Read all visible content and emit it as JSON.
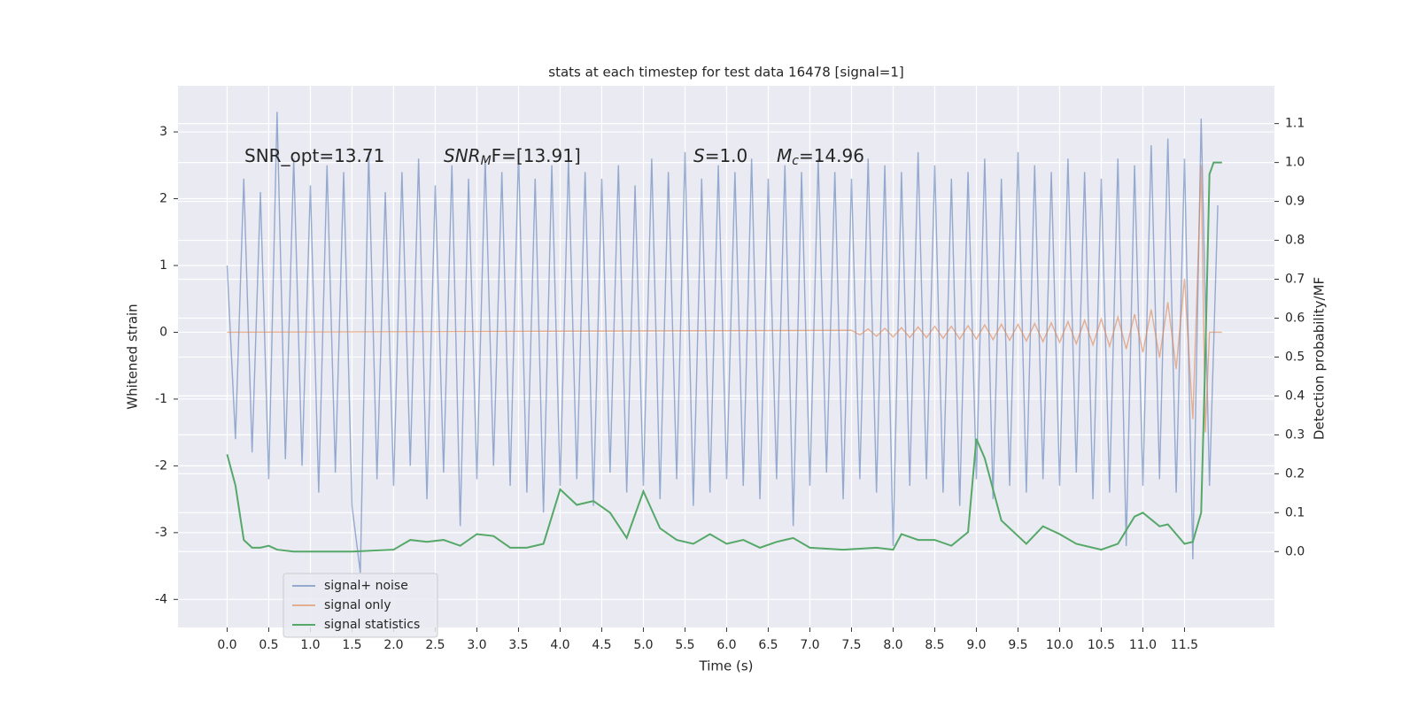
{
  "chart_data": {
    "type": "line",
    "title": "stats at each timestep for test data 16478 [signal=1]",
    "xlabel": "Time (s)",
    "ylabel": "Whitened strain",
    "y2label": "Detection probability/MF",
    "annotations": [
      {
        "base": "SNR_opt=13.71"
      },
      {
        "base": "SNR",
        "sub": "M",
        "rest": "F=[13.91]"
      },
      {
        "base": "S",
        "rest": "=1.0"
      },
      {
        "base": "M",
        "sub": "c",
        "rest": "=14.96"
      }
    ],
    "xlim": [
      -0.59,
      12.58
    ],
    "ylim": [
      -4.42,
      3.69
    ],
    "y2lim": [
      -0.195,
      1.197
    ],
    "xticks": [
      {
        "value": 0,
        "label": "0.0"
      },
      {
        "value": 0.5,
        "label": "0.5"
      },
      {
        "value": 1,
        "label": "1.0"
      },
      {
        "value": 1.5,
        "label": "1.5"
      },
      {
        "value": 2,
        "label": "2.0"
      },
      {
        "value": 2.5,
        "label": "2.5"
      },
      {
        "value": 3,
        "label": "3.0"
      },
      {
        "value": 3.5,
        "label": "3.5"
      },
      {
        "value": 4,
        "label": "4.0"
      },
      {
        "value": 4.5,
        "label": "4.5"
      },
      {
        "value": 5,
        "label": "5.0"
      },
      {
        "value": 5.5,
        "label": "5.5"
      },
      {
        "value": 6,
        "label": "6.0"
      },
      {
        "value": 6.5,
        "label": "6.5"
      },
      {
        "value": 7,
        "label": "7.0"
      },
      {
        "value": 7.5,
        "label": "7.5"
      },
      {
        "value": 8,
        "label": "8.0"
      },
      {
        "value": 8.5,
        "label": "8.5"
      },
      {
        "value": 9,
        "label": "9.0"
      },
      {
        "value": 9.5,
        "label": "9.5"
      },
      {
        "value": 10,
        "label": "10.0"
      },
      {
        "value": 10.5,
        "label": "10.5"
      },
      {
        "value": 11,
        "label": "11.0"
      },
      {
        "value": 11.5,
        "label": "11.5"
      }
    ],
    "yticks": [
      3,
      2,
      1,
      0,
      -1,
      -2,
      -3,
      -4
    ],
    "y2ticks": [
      {
        "value": 0,
        "label": "0.0"
      },
      0.1,
      0.2,
      0.3,
      0.4,
      0.5,
      0.6,
      0.7,
      0.8,
      0.9,
      {
        "value": 1,
        "label": "1.0"
      },
      1.1
    ],
    "grid": true,
    "legend": "lower left",
    "series": [
      {
        "name": "signal+ noise",
        "color": "#4c72b0",
        "x": [
          0,
          0.1,
          0.2,
          0.3,
          0.4,
          0.5,
          0.6,
          0.7,
          0.8,
          0.9,
          1,
          1.1,
          1.2,
          1.3,
          1.4,
          1.5,
          1.6,
          1.7,
          1.8,
          1.9,
          2,
          2.1,
          2.2,
          2.3,
          2.4,
          2.5,
          2.6,
          2.7,
          2.8,
          2.9,
          3,
          3.1,
          3.2,
          3.3,
          3.4,
          3.5,
          3.6,
          3.7,
          3.8,
          3.9,
          4,
          4.1,
          4.2,
          4.3,
          4.4,
          4.5,
          4.6,
          4.7,
          4.8,
          4.9,
          5,
          5.1,
          5.2,
          5.3,
          5.4,
          5.5,
          5.6,
          5.7,
          5.8,
          5.9,
          6,
          6.1,
          6.2,
          6.3,
          6.4,
          6.5,
          6.6,
          6.7,
          6.8,
          6.9,
          7,
          7.1,
          7.2,
          7.3,
          7.4,
          7.5,
          7.6,
          7.7,
          7.8,
          7.9,
          8,
          8.1,
          8.2,
          8.3,
          8.4,
          8.5,
          8.6,
          8.7,
          8.8,
          8.9,
          9,
          9.1,
          9.2,
          9.3,
          9.4,
          9.5,
          9.6,
          9.7,
          9.8,
          9.9,
          10,
          10.1,
          10.2,
          10.3,
          10.4,
          10.5,
          10.6,
          10.7,
          10.8,
          10.9,
          11,
          11.1,
          11.2,
          11.3,
          11.4,
          11.5,
          11.6,
          11.7,
          11.8,
          11.9
        ],
        "values": [
          1.0,
          -1.6,
          2.3,
          -1.8,
          2.1,
          -2.2,
          3.3,
          -1.9,
          2.6,
          -2.0,
          2.2,
          -2.4,
          2.5,
          -2.1,
          2.4,
          -2.6,
          -3.6,
          2.7,
          -2.2,
          2.1,
          -2.3,
          2.4,
          -2.0,
          2.6,
          -2.5,
          2.2,
          -2.1,
          2.5,
          -2.9,
          2.3,
          -2.2,
          2.6,
          -2.0,
          2.4,
          -2.3,
          2.7,
          -2.4,
          2.3,
          -2.7,
          2.5,
          -2.3,
          2.6,
          -2.2,
          2.4,
          -2.6,
          2.3,
          -2.1,
          2.5,
          -2.4,
          2.2,
          -2.3,
          2.6,
          -2.5,
          2.4,
          -2.2,
          2.7,
          -2.6,
          2.3,
          -2.4,
          2.5,
          -2.2,
          2.4,
          -2.3,
          2.6,
          -2.5,
          2.3,
          -2.2,
          2.5,
          -2.9,
          2.4,
          -2.3,
          2.6,
          -2.1,
          2.4,
          -2.5,
          2.3,
          -2.2,
          2.6,
          -2.4,
          2.5,
          -3.2,
          2.4,
          -2.3,
          2.7,
          -2.2,
          2.5,
          -2.4,
          2.3,
          -2.6,
          2.4,
          -2.2,
          2.6,
          -2.5,
          2.3,
          -2.3,
          2.7,
          -2.4,
          2.5,
          -2.2,
          2.4,
          -2.3,
          2.6,
          -2.1,
          2.4,
          -2.5,
          2.3,
          -2.4,
          2.6,
          -3.2,
          2.5,
          -2.3,
          2.8,
          -2.2,
          2.9,
          -2.4,
          2.6,
          -3.4,
          3.2,
          -2.3,
          1.9
        ]
      },
      {
        "name": "signal only",
        "color": "#dd8452",
        "x": [
          0,
          7.5,
          7.6,
          7.7,
          7.8,
          7.9,
          8,
          8.1,
          8.2,
          8.3,
          8.4,
          8.5,
          8.6,
          8.7,
          8.8,
          8.9,
          9,
          9.1,
          9.2,
          9.3,
          9.4,
          9.5,
          9.6,
          9.7,
          9.8,
          9.9,
          10,
          10.1,
          10.2,
          10.3,
          10.4,
          10.5,
          10.6,
          10.7,
          10.8,
          10.9,
          11,
          11.1,
          11.2,
          11.3,
          11.4,
          11.5,
          11.6,
          11.7,
          11.75,
          11.8,
          11.95
        ],
        "values": [
          0,
          0.03,
          -0.04,
          0.05,
          -0.06,
          0.06,
          -0.07,
          0.07,
          -0.08,
          0.08,
          -0.08,
          0.09,
          -0.09,
          0.09,
          -0.1,
          0.1,
          -0.1,
          0.11,
          -0.11,
          0.12,
          -0.12,
          0.12,
          -0.13,
          0.13,
          -0.14,
          0.14,
          -0.15,
          0.16,
          -0.17,
          0.18,
          -0.19,
          0.2,
          -0.21,
          0.23,
          -0.25,
          0.27,
          -0.3,
          0.34,
          -0.38,
          0.45,
          -0.55,
          0.8,
          -1.3,
          2.5,
          -1.5,
          0,
          0
        ]
      },
      {
        "name": "signal statistics",
        "color": "#55a868",
        "axis": "y2",
        "x": [
          0,
          0.1,
          0.2,
          0.3,
          0.4,
          0.5,
          0.6,
          0.8,
          1,
          1.5,
          2,
          2.2,
          2.4,
          2.6,
          2.8,
          3,
          3.2,
          3.4,
          3.6,
          3.8,
          4,
          4.1,
          4.2,
          4.4,
          4.6,
          4.8,
          5,
          5.2,
          5.4,
          5.6,
          5.8,
          6,
          6.2,
          6.4,
          6.6,
          6.8,
          7,
          7.4,
          7.8,
          8,
          8.1,
          8.3,
          8.5,
          8.7,
          8.9,
          9,
          9.1,
          9.3,
          9.5,
          9.6,
          9.8,
          10,
          10.2,
          10.5,
          10.7,
          10.9,
          11,
          11.2,
          11.3,
          11.5,
          11.6,
          11.7,
          11.75,
          11.8,
          11.85,
          11.95
        ],
        "values": [
          0.25,
          0.17,
          0.03,
          0.01,
          0.01,
          0.015,
          0.005,
          0,
          0,
          0,
          0.005,
          0.03,
          0.025,
          0.03,
          0.015,
          0.045,
          0.04,
          0.01,
          0.01,
          0.02,
          0.16,
          0.14,
          0.12,
          0.13,
          0.1,
          0.035,
          0.155,
          0.06,
          0.03,
          0.02,
          0.045,
          0.02,
          0.03,
          0.01,
          0.025,
          0.035,
          0.01,
          0.005,
          0.01,
          0.005,
          0.045,
          0.03,
          0.03,
          0.015,
          0.05,
          0.29,
          0.24,
          0.08,
          0.04,
          0.02,
          0.065,
          0.045,
          0.02,
          0.005,
          0.02,
          0.09,
          0.1,
          0.065,
          0.07,
          0.02,
          0.025,
          0.1,
          0.5,
          0.97,
          1.0,
          1.0
        ]
      }
    ]
  }
}
